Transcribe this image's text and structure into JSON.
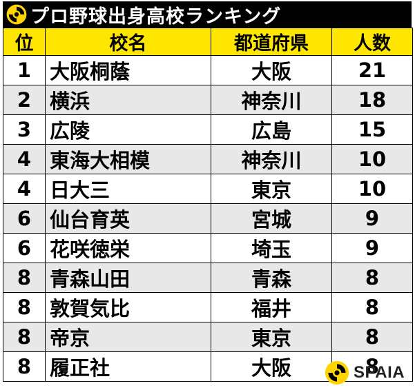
{
  "title": "プロ野球出身高校ランキング",
  "colors": {
    "header_bg": "#FFE600",
    "title_bg": "#000000",
    "alt_row_bg": "#E8E8E8",
    "logo_yellow": "#FFD400"
  },
  "table": {
    "headers": {
      "rank": "位",
      "school": "校名",
      "prefecture": "都道府県",
      "count": "人数"
    },
    "rows": [
      {
        "rank": "1",
        "school": "大阪桐蔭",
        "prefecture": "大阪",
        "count": "21"
      },
      {
        "rank": "2",
        "school": "横浜",
        "prefecture": "神奈川",
        "count": "18"
      },
      {
        "rank": "3",
        "school": "広陵",
        "prefecture": "広島",
        "count": "15"
      },
      {
        "rank": "4",
        "school": "東海大相模",
        "prefecture": "神奈川",
        "count": "10"
      },
      {
        "rank": "4",
        "school": "日大三",
        "prefecture": "東京",
        "count": "10"
      },
      {
        "rank": "6",
        "school": "仙台育英",
        "prefecture": "宮城",
        "count": "9"
      },
      {
        "rank": "6",
        "school": "花咲徳栄",
        "prefecture": "埼玉",
        "count": "9"
      },
      {
        "rank": "8",
        "school": "青森山田",
        "prefecture": "青森",
        "count": "8"
      },
      {
        "rank": "8",
        "school": "敦賀気比",
        "prefecture": "福井",
        "count": "8"
      },
      {
        "rank": "8",
        "school": "帝京",
        "prefecture": "東京",
        "count": "8"
      },
      {
        "rank": "8",
        "school": "履正社",
        "prefecture": "大阪",
        "count": "8"
      }
    ]
  },
  "brand": {
    "name": "SPAIA",
    "logo_icon": "spaia-logo-icon"
  }
}
